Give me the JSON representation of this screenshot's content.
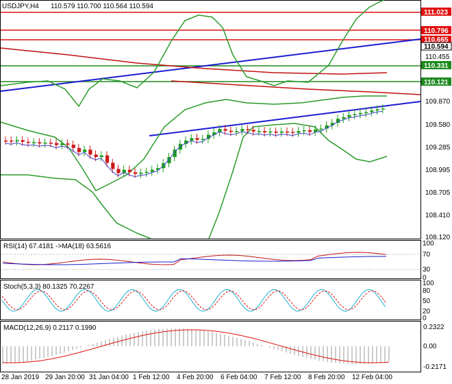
{
  "header": {
    "symbol": "USDJPY,H4",
    "ohlc": "110.579 110.700 110.564 110.594"
  },
  "colors": {
    "candle_up": "#1a9e1a",
    "candle_down": "#cc1a1a",
    "level_red": "#e01010",
    "level_green": "#1e8a1e",
    "trend_blue": "#1b1bd0",
    "bollinger": "#2a9a2a",
    "ma_dark_red": "#c01010",
    "price_badge_red": "#e01010",
    "price_badge_green": "#1e8a1e"
  },
  "price_axis": {
    "ticks": [
      "110.455",
      "109.870",
      "109.580",
      "109.285",
      "108.995",
      "108.705",
      "108.410",
      "108.120"
    ],
    "markers": [
      {
        "label": "111.023",
        "color": "red"
      },
      {
        "label": "110.796",
        "color": "red"
      },
      {
        "label": "110.665",
        "color": "red"
      },
      {
        "label": "110.594",
        "color": "white"
      },
      {
        "label": "110.331",
        "color": "green"
      },
      {
        "label": "110.121",
        "color": "green"
      }
    ]
  },
  "rsi": {
    "label": "RSI(14) 67.4181 ->MA(18) 63.5616",
    "ticks": [
      "100",
      "70",
      "30",
      "0"
    ]
  },
  "stoch": {
    "label": "Stoch(5,3,3) 80.1325 70.2267",
    "ticks": [
      "100",
      "80",
      "50",
      "20",
      "0"
    ]
  },
  "macd": {
    "label": "MACD(12,26,9) 0.2117 0.1990",
    "ticks": [
      "0.2322",
      "0.00",
      "-0.2171"
    ]
  },
  "time_axis": {
    "labels": [
      "28 Jan 2019",
      "29 Jan 20:00",
      "31 Jan 04:00",
      "1 Feb 12:00",
      "4 Feb 20:00",
      "6 Feb 04:00",
      "7 Feb 12:00",
      "8 Feb 20:00",
      "12 Feb 04:00"
    ]
  }
}
